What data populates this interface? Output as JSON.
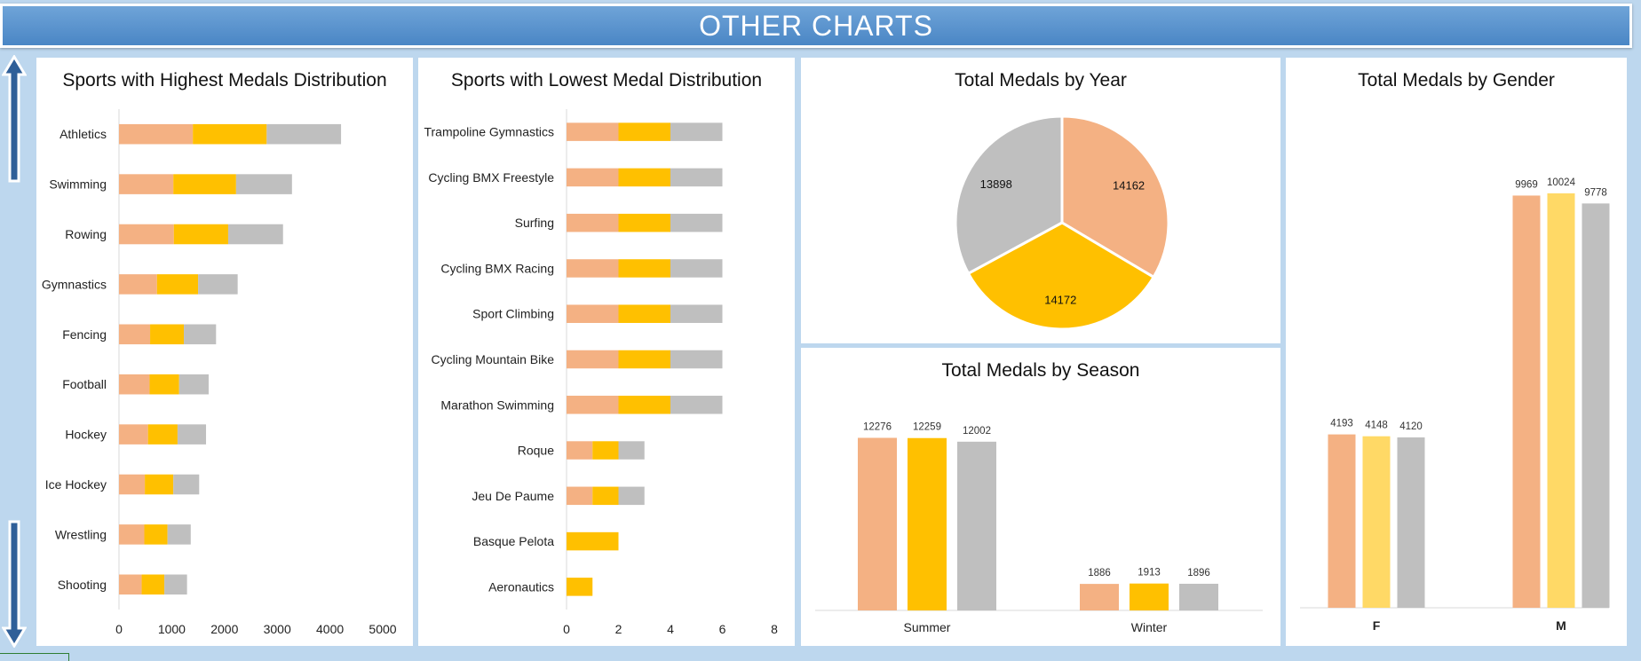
{
  "header": {
    "title": "OTHER CHARTS"
  },
  "colors": {
    "orange": "#f4b183",
    "gold": "#ffc000",
    "lightgold": "#ffd966",
    "gray": "#bfbfbf",
    "banner": "#5b9bd5",
    "background": "#bdd7ee"
  },
  "icons": [
    "up-arrow-icon",
    "down-arrow-icon"
  ],
  "charts": {
    "highest": {
      "title": "Sports with Highest Medals Distribution"
    },
    "lowest": {
      "title": "Sports with Lowest Medal Distribution"
    },
    "year": {
      "title": "Total Medals by Year"
    },
    "season": {
      "title": "Total Medals by Season"
    },
    "gender": {
      "title": "Total Medals by Gender"
    }
  },
  "chart_data": [
    {
      "id": "highest",
      "type": "bar",
      "orientation": "horizontal",
      "stacked": true,
      "title": "Sports with Highest Medals Distribution",
      "categories": [
        "Athletics",
        "Swimming",
        "Rowing",
        "Gymnastics",
        "Fencing",
        "Football",
        "Hockey",
        "Ice Hockey",
        "Wrestling",
        "Shooting"
      ],
      "series": [
        {
          "values": [
            1400,
            1030,
            1040,
            720,
            590,
            580,
            550,
            490,
            480,
            430
          ]
        },
        {
          "values": [
            1400,
            1190,
            1030,
            780,
            640,
            560,
            560,
            540,
            440,
            430
          ]
        },
        {
          "values": [
            1410,
            1060,
            1040,
            750,
            610,
            560,
            540,
            490,
            440,
            430
          ]
        }
      ],
      "xlim": [
        0,
        5000
      ],
      "xticks": [
        "0",
        "1000",
        "2000",
        "3000",
        "4000",
        "5000"
      ]
    },
    {
      "id": "lowest",
      "type": "bar",
      "orientation": "horizontal",
      "stacked": true,
      "title": "Sports with Lowest Medal Distribution",
      "categories": [
        "Trampoline Gymnastics",
        "Cycling BMX Freestyle",
        "Surfing",
        "Cycling BMX Racing",
        "Sport Climbing",
        "Cycling Mountain Bike",
        "Marathon Swimming",
        "Roque",
        "Jeu De Paume",
        "Basque Pelota",
        "Aeronautics"
      ],
      "series": [
        {
          "values": [
            2,
            2,
            2,
            2,
            2,
            2,
            2,
            1,
            1,
            0,
            0
          ]
        },
        {
          "values": [
            2,
            2,
            2,
            2,
            2,
            2,
            2,
            1,
            1,
            2,
            1
          ]
        },
        {
          "values": [
            2,
            2,
            2,
            2,
            2,
            2,
            2,
            1,
            1,
            0,
            0
          ]
        }
      ],
      "xlim": [
        0,
        8
      ],
      "xticks": [
        "0",
        "2",
        "4",
        "6",
        "8"
      ]
    },
    {
      "id": "year",
      "type": "pie",
      "title": "Total Medals by Year",
      "values": [
        14162,
        14172,
        13898
      ],
      "labels": [
        "14162",
        "14172",
        "13898"
      ]
    },
    {
      "id": "season",
      "type": "bar",
      "title": "Total Medals by Season",
      "categories": [
        "Summer",
        "Winter"
      ],
      "series": [
        {
          "values": [
            12276,
            1886
          ]
        },
        {
          "values": [
            12259,
            1913
          ]
        },
        {
          "values": [
            12002,
            1896
          ]
        }
      ]
    },
    {
      "id": "gender",
      "type": "bar",
      "title": "Total Medals by Gender",
      "categories": [
        "F",
        "M"
      ],
      "series": [
        {
          "values": [
            4193,
            9969
          ]
        },
        {
          "values": [
            4148,
            10024
          ]
        },
        {
          "values": [
            4120,
            9778
          ]
        }
      ]
    }
  ]
}
